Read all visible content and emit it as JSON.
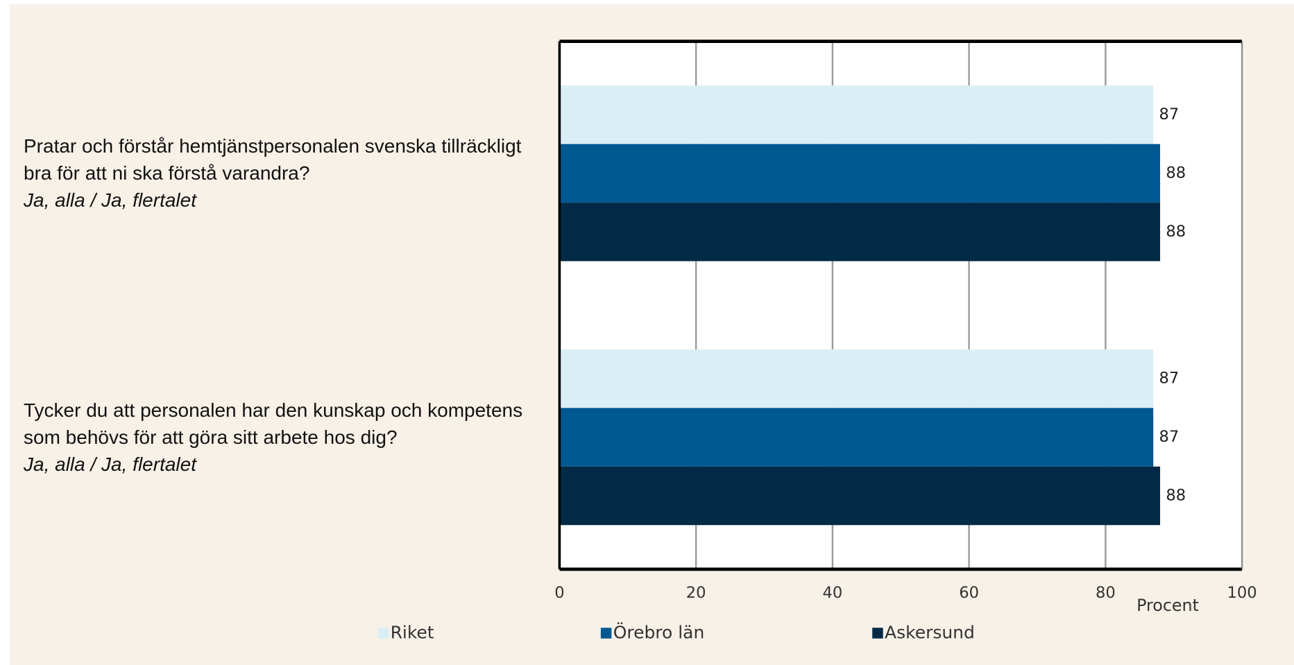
{
  "chart_data": {
    "type": "barh",
    "categories": [
      "Pratar och förstår hemtjänstpersonalen svenska tillräckligt bra för att ni ska förstå varandra?",
      "Tycker du att personalen har den kunskap och kompetens som behövs för att göra sitt arbete hos dig?"
    ],
    "category_notes": [
      "Ja, alla / Ja, flertalet",
      "Ja, alla / Ja, flertalet"
    ],
    "series": [
      {
        "name": "Riket",
        "color": "#daeef5",
        "values": [
          87,
          87
        ]
      },
      {
        "name": "Örebro län",
        "color": "#005893",
        "values": [
          88,
          87
        ]
      },
      {
        "name": "Askersund",
        "color": "#002a45",
        "values": [
          88,
          88
        ]
      }
    ],
    "xlabel": "Procent",
    "xlim": [
      0,
      100
    ],
    "xticks": [
      0,
      20,
      40,
      60,
      80,
      100
    ],
    "grid": true
  }
}
